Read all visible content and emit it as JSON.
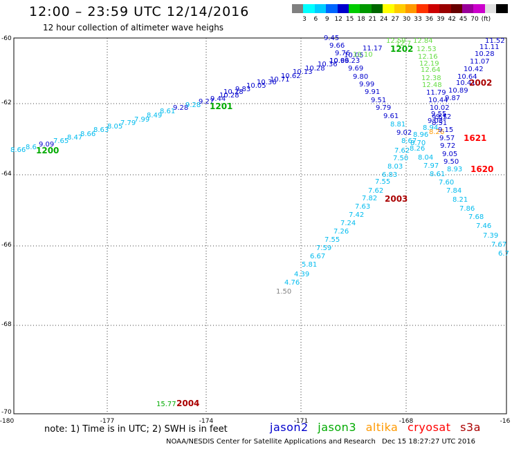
{
  "header": {
    "title": "12:00 – 23:59 UTC 12/14/2016",
    "subtitle": "12 hour collection of altimeter wave heighs"
  },
  "colorbar": {
    "unit_label": "(ft)",
    "colors": [
      "#808080",
      "#00ffff",
      "#00ccff",
      "#0066ff",
      "#0000cc",
      "#00cc00",
      "#009900",
      "#006600",
      "#ffff00",
      "#ffcc00",
      "#ff9900",
      "#ff3300",
      "#cc0000",
      "#990000",
      "#660000",
      "#990099",
      "#cc00cc",
      "#e0e0e0",
      "#000000"
    ],
    "labels": [
      "3",
      "6",
      "9",
      "12",
      "15",
      "18",
      "21",
      "24",
      "27",
      "30",
      "33",
      "36",
      "39",
      "42",
      "45",
      "70"
    ]
  },
  "axes": {
    "lon_labels": [
      "-180",
      "-177",
      "-174",
      "-171",
      "-168",
      "-16"
    ],
    "lat_labels": [
      "-60",
      "-62",
      "-64",
      "-66",
      "-68",
      "-70"
    ]
  },
  "satellite_colors": {
    "jason2": "#0000cc",
    "jason3": "#00aa00",
    "altika": "#ff9900",
    "cryosat": "#ff0000",
    "s3a": "#aa0000",
    "light_blue": "#00bbee",
    "light_green": "#66dd44",
    "grey": "#808080"
  },
  "points": {
    "track1": [
      {
        "v": "8.66",
        "c": "light_blue"
      },
      {
        "v": "8.6",
        "c": "light_blue"
      },
      {
        "v": "9.09",
        "c": "jason2"
      },
      {
        "v": "7.65",
        "c": "light_blue"
      },
      {
        "v": "8.47",
        "c": "light_blue"
      },
      {
        "v": "8.66",
        "c": "light_blue"
      },
      {
        "v": "8.63",
        "c": "light_blue"
      },
      {
        "v": "8.05",
        "c": "light_blue"
      },
      {
        "v": "7.79",
        "c": "light_blue"
      },
      {
        "v": "7.99",
        "c": "light_blue"
      },
      {
        "v": "8.49",
        "c": "light_blue"
      },
      {
        "v": "8.61",
        "c": "light_blue"
      },
      {
        "v": "9.28",
        "c": "jason2"
      },
      {
        "v": "9.28",
        "c": "light_blue"
      },
      {
        "v": "9.27",
        "c": "jason2"
      },
      {
        "v": "9.44",
        "c": "jason2"
      },
      {
        "v": "10.28",
        "c": "jason2"
      },
      {
        "v": "10.28",
        "c": "jason2"
      },
      {
        "v": "9.83",
        "c": "jason2"
      },
      {
        "v": "10.05",
        "c": "jason2"
      },
      {
        "v": "10.36",
        "c": "jason2"
      },
      {
        "v": "10.71",
        "c": "jason2"
      },
      {
        "v": "10.62",
        "c": "jason2"
      },
      {
        "v": "10.13",
        "c": "jason2"
      },
      {
        "v": "10.28",
        "c": "jason2"
      },
      {
        "v": "10.36",
        "c": "jason2"
      },
      {
        "v": "10.66",
        "c": "jason2"
      },
      {
        "v": "11.17",
        "c": "jason2"
      }
    ],
    "cluster_top": [
      {
        "v": "9.45",
        "c": "jason2"
      },
      {
        "v": "9.66",
        "c": "jason2"
      },
      {
        "v": "9.76",
        "c": "jason2"
      },
      {
        "v": "10.05",
        "c": "jason2"
      },
      {
        "v": "10.9",
        "c": "jason2"
      },
      {
        "v": "9.23",
        "c": "jason2"
      },
      {
        "v": "10.10",
        "c": "light_green"
      },
      {
        "v": "12.59",
        "c": "light_green"
      },
      {
        "v": "12.7",
        "c": "light_green"
      }
    ],
    "track2_down": [
      {
        "v": "9.69",
        "c": "jason2"
      },
      {
        "v": "9.80",
        "c": "jason2"
      },
      {
        "v": "9.99",
        "c": "jason2"
      },
      {
        "v": "9.91",
        "c": "jason2"
      },
      {
        "v": "9.51",
        "c": "jason2"
      },
      {
        "v": "9.79",
        "c": "jason2"
      },
      {
        "v": "9.61",
        "c": "jason2"
      },
      {
        "v": "8.81",
        "c": "light_blue"
      },
      {
        "v": "9.02",
        "c": "jason2"
      },
      {
        "v": "8.96",
        "c": "light_blue"
      },
      {
        "v": "8.67",
        "c": "light_blue"
      },
      {
        "v": "8.70",
        "c": "light_blue"
      },
      {
        "v": "7.62",
        "c": "light_blue"
      },
      {
        "v": "8.26",
        "c": "light_blue"
      },
      {
        "v": "8.04",
        "c": "light_blue"
      },
      {
        "v": "7.97",
        "c": "light_blue"
      },
      {
        "v": "8.61",
        "c": "light_blue"
      },
      {
        "v": "7.60",
        "c": "light_blue"
      },
      {
        "v": "7.84",
        "c": "light_blue"
      },
      {
        "v": "8.21",
        "c": "light_blue"
      },
      {
        "v": "7.86",
        "c": "light_blue"
      },
      {
        "v": "7.68",
        "c": "light_blue"
      },
      {
        "v": "7.46",
        "c": "light_blue"
      },
      {
        "v": "7.39",
        "c": "light_blue"
      },
      {
        "v": "7.67",
        "c": "light_blue"
      },
      {
        "v": "6.7",
        "c": "light_blue"
      }
    ],
    "track3_down": [
      {
        "v": "12.84",
        "c": "light_green"
      },
      {
        "v": "12.53",
        "c": "light_green"
      },
      {
        "v": "12.16",
        "c": "light_green"
      },
      {
        "v": "12.19",
        "c": "light_green"
      },
      {
        "v": "12.64",
        "c": "light_green"
      },
      {
        "v": "12.38",
        "c": "light_green"
      },
      {
        "v": "12.48",
        "c": "light_green"
      },
      {
        "v": "11.79",
        "c": "jason2"
      },
      {
        "v": "10.44",
        "c": "jason2"
      },
      {
        "v": "10.02",
        "c": "jason2"
      },
      {
        "v": "9.55",
        "c": "jason2"
      },
      {
        "v": "9.55",
        "c": "jason2"
      },
      {
        "v": "9.03",
        "c": "jason2"
      },
      {
        "v": "8.51",
        "c": "jason2"
      },
      {
        "v": "8.94",
        "c": "light_blue"
      },
      {
        "v": "8.26",
        "c": "altika"
      },
      {
        "v": "9.15",
        "c": "jason2"
      },
      {
        "v": "9.57",
        "c": "jason2"
      },
      {
        "v": "9.72",
        "c": "jason2"
      },
      {
        "v": "9.05",
        "c": "jason2"
      },
      {
        "v": "9.50",
        "c": "jason2"
      },
      {
        "v": "8.93",
        "c": "light_blue"
      }
    ],
    "track4_right": [
      {
        "v": "11.52",
        "c": "jason2"
      },
      {
        "v": "11.11",
        "c": "jason2"
      },
      {
        "v": "10.28",
        "c": "jason2"
      },
      {
        "v": "11.07",
        "c": "jason2"
      },
      {
        "v": "10.42",
        "c": "jason2"
      },
      {
        "v": "10.64",
        "c": "jason2"
      },
      {
        "v": "10.41",
        "c": "jason2"
      },
      {
        "v": "10.89",
        "c": "jason2"
      },
      {
        "v": "9.87",
        "c": "jason2"
      },
      {
        "v": "9.72",
        "c": "jason2"
      }
    ],
    "track5_up": [
      {
        "v": "7.50",
        "c": "light_blue"
      },
      {
        "v": "8.03",
        "c": "light_blue"
      },
      {
        "v": "6.83",
        "c": "light_blue"
      },
      {
        "v": "7.55",
        "c": "light_blue"
      },
      {
        "v": "7.62",
        "c": "light_blue"
      },
      {
        "v": "7.82",
        "c": "light_blue"
      },
      {
        "v": "7.63",
        "c": "light_blue"
      },
      {
        "v": "7.42",
        "c": "light_blue"
      },
      {
        "v": "7.24",
        "c": "light_blue"
      },
      {
        "v": "7.26",
        "c": "light_blue"
      },
      {
        "v": "7.55",
        "c": "light_blue"
      },
      {
        "v": "7.59",
        "c": "light_blue"
      },
      {
        "v": "6.67",
        "c": "light_blue"
      },
      {
        "v": "5.81",
        "c": "light_blue"
      },
      {
        "v": "4.39",
        "c": "light_blue"
      },
      {
        "v": "4.76",
        "c": "light_blue"
      },
      {
        "v": "1.50",
        "c": "grey"
      }
    ],
    "bottom": [
      {
        "v": "15.77",
        "c": "jason3"
      }
    ]
  },
  "time_labels": [
    {
      "t": "1200",
      "c": "jason3"
    },
    {
      "t": "1201",
      "c": "jason3"
    },
    {
      "t": "1202",
      "c": "jason3"
    },
    {
      "t": "2002",
      "c": "s3a"
    },
    {
      "t": "1621",
      "c": "cryosat"
    },
    {
      "t": "1620",
      "c": "cryosat"
    },
    {
      "t": "2003",
      "c": "s3a"
    },
    {
      "t": "2004",
      "c": "s3a"
    }
  ],
  "footer": {
    "note": "note: 1) Time is in UTC; 2) SWH is in feet",
    "sat_jason2": "jason2",
    "sat_jason3": "jason3",
    "sat_altika": "altika",
    "sat_cryosat": "cryosat",
    "sat_s3a": "s3a",
    "credit": "NOAA/NESDIS Center for Satellite Applications and Research",
    "timestamp": "Dec 15 18:27:27 UTC 2016"
  }
}
